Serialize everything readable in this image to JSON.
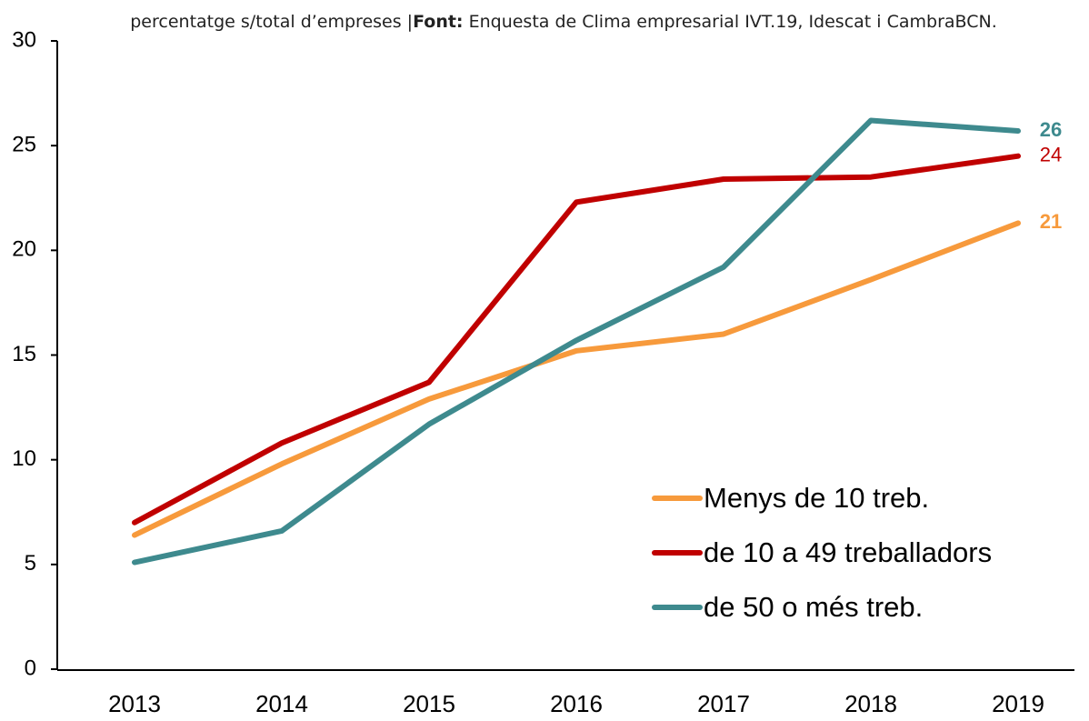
{
  "chart_data": {
    "type": "line",
    "subtitle": "percentatge s/total d’empreses |",
    "source_label": "Font:",
    "source": " Enquesta de Clima empresarial IVT.19, Idescat i CambraBCN.",
    "categories": [
      "2013",
      "2014",
      "2015",
      "2016",
      "2017",
      "2018",
      "2019"
    ],
    "series": [
      {
        "name": "Menys de 10 treb.",
        "color": "#f79a3c",
        "values": [
          6.4,
          9.8,
          12.9,
          15.2,
          16.0,
          18.6,
          21.3
        ],
        "value_labels": [
          null,
          null,
          null,
          null,
          null,
          null,
          "21"
        ]
      },
      {
        "name": "de 10 a 49 treballadors",
        "color": "#c00000",
        "values": [
          7.0,
          10.8,
          13.7,
          22.3,
          23.4,
          23.5,
          24.5
        ],
        "value_labels": [
          null,
          null,
          null,
          null,
          null,
          null,
          "24"
        ]
      },
      {
        "name": "de 50 o més treb.",
        "color": "#3e8a8e",
        "values": [
          5.1,
          6.6,
          11.7,
          15.7,
          19.2,
          26.2,
          25.7
        ],
        "value_labels": [
          null,
          null,
          null,
          null,
          null,
          null,
          "26"
        ]
      }
    ],
    "ylim": [
      0,
      30
    ],
    "yticks": [
      0,
      5,
      10,
      15,
      20,
      25,
      30
    ],
    "grid": false,
    "legend": "lower right"
  }
}
